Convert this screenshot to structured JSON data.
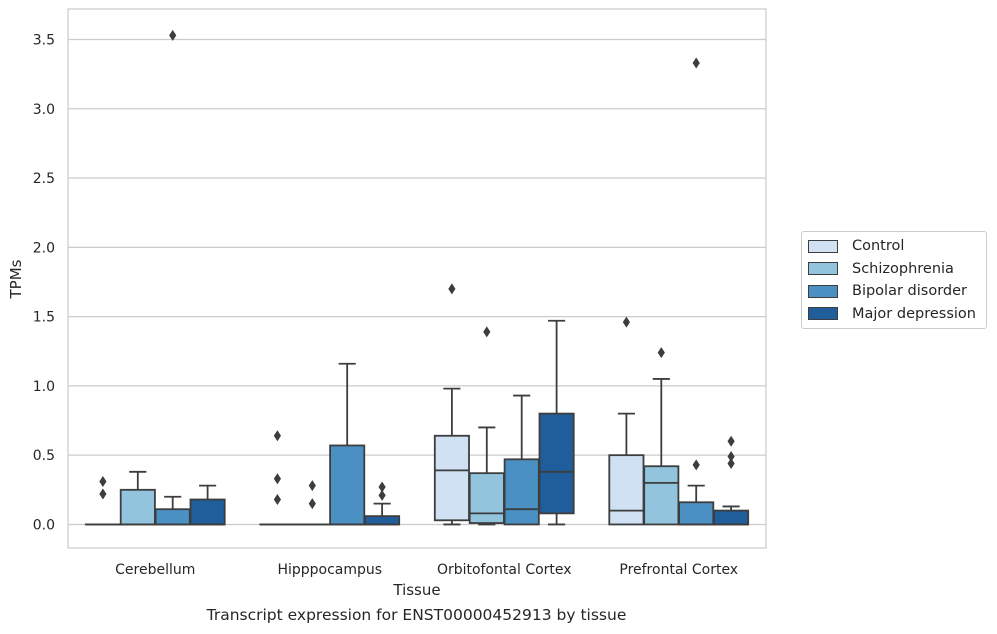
{
  "chart_data": {
    "type": "boxplot",
    "caption": "Transcript expression for ENST00000452913 by tissue",
    "xlabel": "Tissue",
    "ylabel": "TPMs",
    "ylim": [
      -0.17,
      3.72
    ],
    "yticks": [
      0.0,
      0.5,
      1.0,
      1.5,
      2.0,
      2.5,
      3.0,
      3.5
    ],
    "ytick_labels": [
      "0.0",
      "0.5",
      "1.0",
      "1.5",
      "2.0",
      "2.5",
      "3.0",
      "3.5"
    ],
    "grid": "horizontal",
    "legend_position": "right",
    "categories": [
      "Cerebellum",
      "Hipppocampus",
      "Orbitofontal Cortex",
      "Prefrontal Cortex"
    ],
    "series": [
      {
        "name": "Control",
        "color": "#cfe1f2",
        "boxes": [
          {
            "q1": 0.0,
            "median": 0.0,
            "q3": 0.0,
            "whislo": 0.0,
            "whishi": 0.0,
            "fliers": [
              0.22,
              0.31
            ]
          },
          {
            "q1": 0.0,
            "median": 0.0,
            "q3": 0.0,
            "whislo": 0.0,
            "whishi": 0.0,
            "fliers": [
              0.18,
              0.33,
              0.64
            ]
          },
          {
            "q1": 0.03,
            "median": 0.39,
            "q3": 0.64,
            "whislo": 0.0,
            "whishi": 0.98,
            "fliers": [
              1.7
            ]
          },
          {
            "q1": 0.0,
            "median": 0.1,
            "q3": 0.5,
            "whislo": 0.0,
            "whishi": 0.8,
            "fliers": [
              1.46
            ]
          }
        ]
      },
      {
        "name": "Schizophrenia",
        "color": "#93c4de",
        "boxes": [
          {
            "q1": 0.0,
            "median": 0.0,
            "q3": 0.25,
            "whislo": 0.0,
            "whishi": 0.38,
            "fliers": []
          },
          {
            "q1": 0.0,
            "median": 0.0,
            "q3": 0.0,
            "whislo": 0.0,
            "whishi": 0.0,
            "fliers": [
              0.15,
              0.28
            ]
          },
          {
            "q1": 0.01,
            "median": 0.08,
            "q3": 0.37,
            "whislo": 0.0,
            "whishi": 0.7,
            "fliers": [
              1.39
            ]
          },
          {
            "q1": 0.0,
            "median": 0.3,
            "q3": 0.42,
            "whislo": 0.0,
            "whishi": 1.05,
            "fliers": [
              1.24
            ]
          }
        ]
      },
      {
        "name": "Bipolar disorder",
        "color": "#4a90c2",
        "boxes": [
          {
            "q1": 0.0,
            "median": 0.0,
            "q3": 0.11,
            "whislo": 0.0,
            "whishi": 0.2,
            "fliers": [
              3.53
            ]
          },
          {
            "q1": 0.0,
            "median": 0.0,
            "q3": 0.57,
            "whislo": 0.0,
            "whishi": 1.16,
            "fliers": []
          },
          {
            "q1": 0.0,
            "median": 0.11,
            "q3": 0.47,
            "whislo": 0.0,
            "whishi": 0.93,
            "fliers": []
          },
          {
            "q1": 0.0,
            "median": 0.0,
            "q3": 0.16,
            "whislo": 0.0,
            "whishi": 0.28,
            "fliers": [
              0.43,
              3.33
            ]
          }
        ]
      },
      {
        "name": "Major depression",
        "color": "#1f5d9b",
        "boxes": [
          {
            "q1": 0.0,
            "median": 0.0,
            "q3": 0.18,
            "whislo": 0.0,
            "whishi": 0.28,
            "fliers": []
          },
          {
            "q1": 0.0,
            "median": 0.0,
            "q3": 0.06,
            "whislo": 0.0,
            "whishi": 0.15,
            "fliers": [
              0.21,
              0.27
            ]
          },
          {
            "q1": 0.08,
            "median": 0.38,
            "q3": 0.8,
            "whislo": 0.0,
            "whishi": 1.47,
            "fliers": []
          },
          {
            "q1": 0.0,
            "median": 0.0,
            "q3": 0.1,
            "whislo": 0.0,
            "whishi": 0.13,
            "fliers": [
              0.44,
              0.49,
              0.6
            ]
          }
        ]
      }
    ]
  }
}
